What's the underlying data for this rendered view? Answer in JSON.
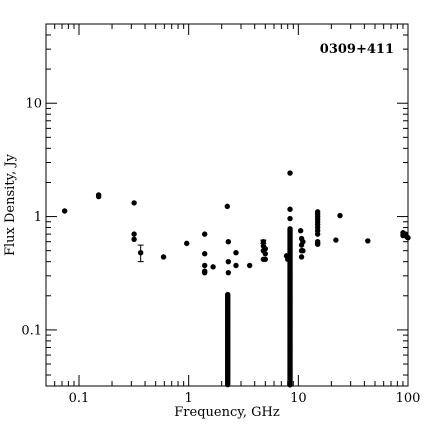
{
  "chart_data": {
    "type": "scatter",
    "title": "0309+411",
    "xlabel": "Frequency, GHz",
    "ylabel": "Flux Density, Jy",
    "xscale": "log",
    "yscale": "log",
    "xlim": [
      0.05,
      100
    ],
    "ylim": [
      0.032,
      50
    ],
    "x_ticks": [
      {
        "v": 0.1,
        "label": "0.1"
      },
      {
        "v": 1,
        "label": "1"
      },
      {
        "v": 10,
        "label": "10"
      },
      {
        "v": 100,
        "label": "100"
      }
    ],
    "y_ticks": [
      {
        "v": 0.1,
        "label": "0.1"
      },
      {
        "v": 1,
        "label": "1"
      },
      {
        "v": 10,
        "label": "10"
      }
    ],
    "title_position": "top-right",
    "grid": false,
    "marker_color": "#000000",
    "points": [
      [
        0.074,
        1.12
      ],
      [
        0.151,
        1.55
      ],
      [
        0.151,
        1.5
      ],
      [
        0.318,
        1.32
      ],
      [
        0.318,
        0.7
      ],
      [
        0.318,
        0.63
      ],
      [
        0.365,
        0.48
      ],
      [
        0.59,
        0.44
      ],
      [
        0.96,
        0.58
      ],
      [
        1.4,
        0.7
      ],
      [
        1.4,
        0.47
      ],
      [
        1.4,
        0.37
      ],
      [
        1.4,
        0.33
      ],
      [
        1.4,
        0.32
      ],
      [
        1.67,
        0.36
      ],
      [
        2.25,
        1.23
      ],
      [
        2.3,
        0.6
      ],
      [
        2.3,
        0.4
      ],
      [
        2.3,
        0.32
      ],
      [
        2.7,
        0.48
      ],
      [
        2.7,
        0.37
      ],
      [
        3.6,
        0.37
      ],
      [
        4.8,
        0.6
      ],
      [
        4.8,
        0.55
      ],
      [
        4.8,
        0.5
      ],
      [
        4.8,
        0.42
      ],
      [
        5.0,
        0.52
      ],
      [
        5.0,
        0.47
      ],
      [
        5.0,
        0.42
      ],
      [
        7.8,
        0.45
      ],
      [
        8.0,
        0.42
      ],
      [
        8.4,
        2.42
      ],
      [
        8.4,
        1.16
      ],
      [
        8.4,
        0.96
      ],
      [
        10.5,
        0.75
      ],
      [
        10.7,
        0.64
      ],
      [
        10.7,
        0.56
      ],
      [
        10.7,
        0.5
      ],
      [
        10.7,
        0.44
      ],
      [
        11.0,
        0.6
      ],
      [
        11.0,
        0.5
      ],
      [
        15,
        1.1
      ],
      [
        15,
        1.05
      ],
      [
        15,
        1.0
      ],
      [
        15,
        0.95
      ],
      [
        15,
        0.9
      ],
      [
        15,
        0.85
      ],
      [
        15,
        0.8
      ],
      [
        15,
        0.75
      ],
      [
        15,
        0.7
      ],
      [
        15,
        0.6
      ],
      [
        15,
        0.58
      ],
      [
        15,
        0.57
      ],
      [
        22,
        0.62
      ],
      [
        24,
        1.02
      ],
      [
        43,
        0.61
      ],
      [
        90,
        0.72
      ],
      [
        90,
        0.68
      ],
      [
        95,
        0.7
      ],
      [
        100,
        0.65
      ],
      [
        98,
        0.66
      ]
    ],
    "vertical_point_runs": [
      {
        "x": 2.27,
        "y_from": 0.032,
        "y_to": 0.205
      },
      {
        "x": 8.4,
        "y_from": 0.032,
        "y_to": 0.78
      }
    ],
    "error_bars": [
      {
        "x": 0.365,
        "y": 0.48,
        "ylow": 0.4,
        "yhigh": 0.56
      },
      {
        "x": 4.8,
        "y": 0.6,
        "ylow": 0.58,
        "yhigh": 0.62
      }
    ]
  }
}
